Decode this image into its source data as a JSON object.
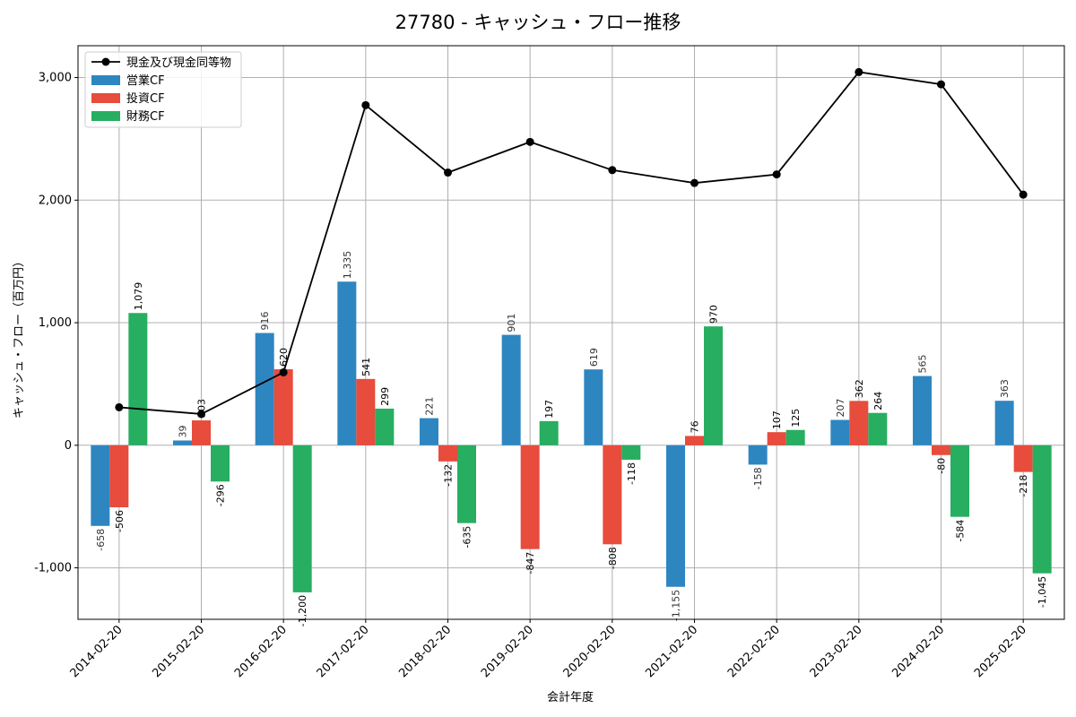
{
  "chart_data": {
    "type": "bar",
    "title": "27780 - キャッシュ・フロー推移",
    "xlabel": "会計年度",
    "ylabel": "キャッシュ・フロー（百万円）",
    "categories": [
      "2014-02-20",
      "2015-02-20",
      "2016-02-20",
      "2017-02-20",
      "2018-02-20",
      "2019-02-20",
      "2020-02-20",
      "2021-02-20",
      "2022-02-20",
      "2023-02-20",
      "2024-02-20",
      "2025-02-20"
    ],
    "series": [
      {
        "name": "営業CF",
        "type": "bar",
        "color": "#2e86c1",
        "values": [
          -658,
          39,
          916,
          1335,
          221,
          901,
          619,
          -1155,
          -158,
          207,
          565,
          363
        ],
        "labels": [
          "-658",
          "39",
          "916",
          "1,335",
          "221",
          "901",
          "619",
          "-1,155",
          "-158",
          "207",
          "565",
          "363"
        ]
      },
      {
        "name": "投資CF",
        "type": "bar",
        "color": "#e74c3c",
        "values": [
          -506,
          203,
          620,
          541,
          -132,
          -847,
          -808,
          76,
          107,
          362,
          -80,
          -218
        ],
        "labels": [
          "-506",
          "203",
          "620",
          "541",
          "-132",
          "-847",
          "-808",
          "76",
          "107",
          "362",
          "-80",
          "-218"
        ]
      },
      {
        "name": "財務CF",
        "type": "bar",
        "color": "#27ae60",
        "values": [
          1079,
          -296,
          -1200,
          299,
          -635,
          197,
          -118,
          970,
          125,
          264,
          -584,
          -1045
        ],
        "labels": [
          "1,079",
          "-296",
          "-1,200",
          "299",
          "-635",
          "197",
          "-118",
          "970",
          "125",
          "264",
          "-584",
          "-1,045"
        ]
      },
      {
        "name": "現金及び現金同等物",
        "type": "line",
        "color": "#000000",
        "values": [
          310,
          255,
          595,
          2775,
          2225,
          2475,
          2245,
          2140,
          2210,
          3045,
          2945,
          2045
        ]
      }
    ],
    "yticks": [
      -1000,
      0,
      1000,
      2000,
      3000
    ],
    "ytick_labels": [
      "-1,000",
      "0",
      "1,000",
      "2,000",
      "3,000"
    ],
    "ylim": [
      -1420,
      3260
    ],
    "grid": true,
    "legend_position": "top-left"
  }
}
